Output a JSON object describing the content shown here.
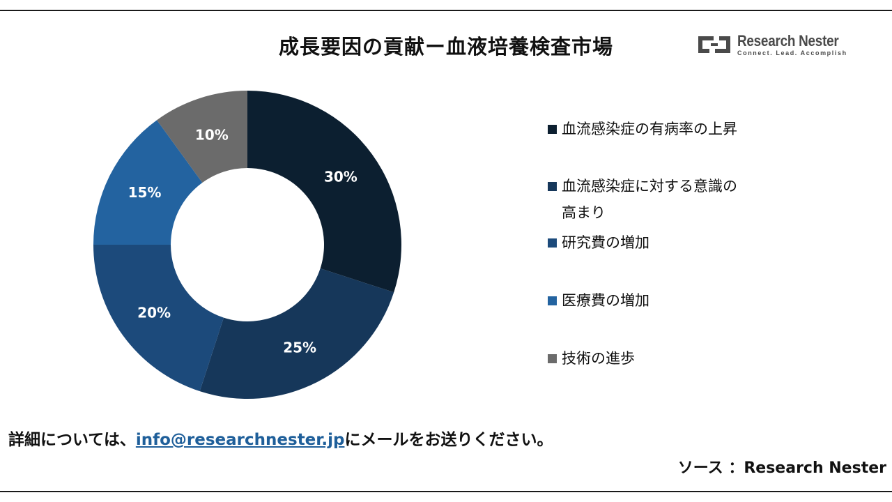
{
  "title": "成長要因の貢献ー血液培養検査市場",
  "logo": {
    "name": "Research Nester",
    "tagline": "Connect. Lead. Accomplish"
  },
  "chart_data": {
    "type": "pie",
    "donut": true,
    "title": "成長要因の貢献ー血液培養検査市場",
    "legend_position": "right",
    "categories": [
      "血流感染症の有病率の上昇",
      "血流感染症に対する意識の高まり",
      "研究費の増加",
      "医療費の増加",
      "技術の進歩"
    ],
    "values": [
      30,
      25,
      20,
      15,
      10
    ],
    "data_labels": [
      "30%",
      "25%",
      "20%",
      "15%",
      "10%"
    ],
    "colors": [
      "#0c1f30",
      "#16375a",
      "#1c4a7b",
      "#2363a0",
      "#6b6b6b"
    ]
  },
  "footer": {
    "prefix": "詳細については、",
    "email": "info@researchnester.jp",
    "suffix": "にメールをお送りください。"
  },
  "source": "ソース ：Research Nester"
}
